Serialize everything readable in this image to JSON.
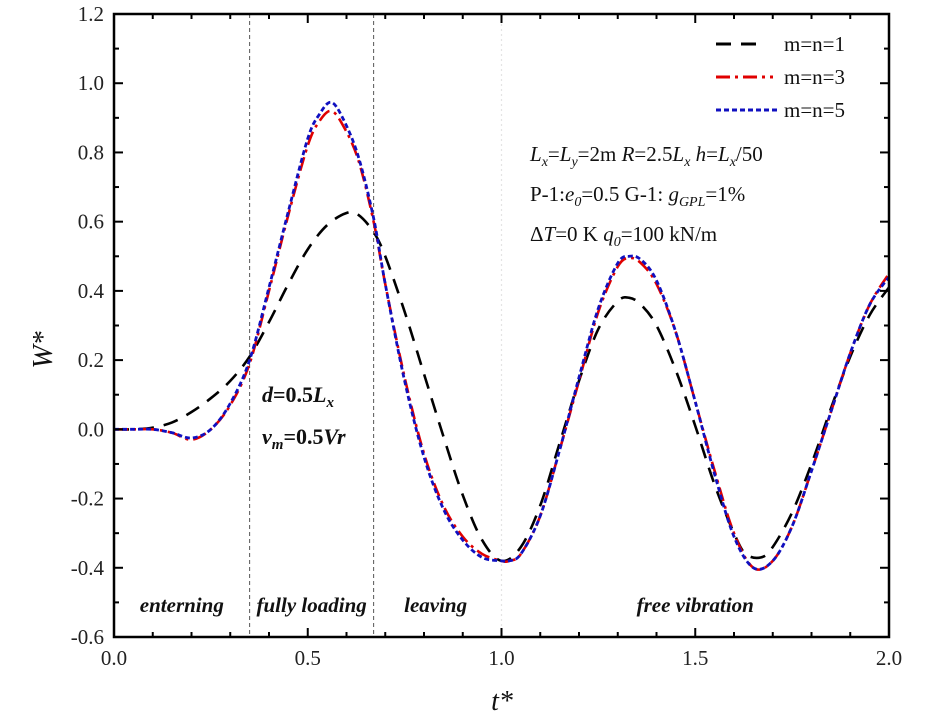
{
  "chart_data": {
    "type": "line",
    "title": "",
    "xlabel": "t*",
    "ylabel": "W*",
    "xlim": [
      0.0,
      2.0
    ],
    "ylim": [
      -0.6,
      1.2
    ],
    "xticks": [
      "0.0",
      "0.5",
      "1.0",
      "1.5",
      "2.0"
    ],
    "xtick_values": [
      0.0,
      0.5,
      1.0,
      1.5,
      2.0
    ],
    "yticks": [
      "-0.6",
      "-0.4",
      "-0.2",
      "0.0",
      "0.2",
      "0.4",
      "0.6",
      "0.8",
      "1.0",
      "1.2"
    ],
    "ytick_values": [
      -0.6,
      -0.4,
      -0.2,
      0.0,
      0.2,
      0.4,
      0.6,
      0.8,
      1.0,
      1.2
    ],
    "grid": false,
    "legend_position": "top-right",
    "vertical_markers": [
      {
        "x": 0.35,
        "style": "dashed"
      },
      {
        "x": 0.67,
        "style": "dashed"
      },
      {
        "x": 1.0,
        "style": "dotted-faint"
      }
    ],
    "region_labels": [
      {
        "text": "enterning",
        "x": 0.175
      },
      {
        "text": "fully loading",
        "x": 0.51
      },
      {
        "text": "leaving",
        "x": 0.83
      },
      {
        "text": "free vibration",
        "x": 1.5
      }
    ],
    "annotations": {
      "load": [
        "d=0.5Lx",
        "vm=0.5Vr"
      ],
      "params_line1": "Lx=Ly=2m   R=2.5Lx   h=Lx/50",
      "params_line2": "P-1:e0=0.5  G-1: gGPL=1%",
      "params_line3": "ΔT=0 K  q0=100 kN/m"
    },
    "series": [
      {
        "name": "m=n=1",
        "color": "#000000",
        "style": "dashed",
        "x": [
          0.0,
          0.05,
          0.1,
          0.15,
          0.2,
          0.25,
          0.3,
          0.35,
          0.4,
          0.45,
          0.5,
          0.55,
          0.6,
          0.63,
          0.67,
          0.7,
          0.75,
          0.8,
          0.85,
          0.9,
          0.95,
          1.0,
          1.05,
          1.1,
          1.15,
          1.2,
          1.25,
          1.3,
          1.33,
          1.36,
          1.4,
          1.45,
          1.5,
          1.55,
          1.6,
          1.63,
          1.67,
          1.7,
          1.75,
          1.8,
          1.85,
          1.9,
          1.95,
          2.0
        ],
        "y": [
          0.0,
          0.0,
          0.005,
          0.02,
          0.05,
          0.09,
          0.14,
          0.21,
          0.31,
          0.42,
          0.52,
          0.59,
          0.625,
          0.62,
          0.57,
          0.5,
          0.34,
          0.16,
          -0.02,
          -0.19,
          -0.32,
          -0.38,
          -0.34,
          -0.22,
          -0.04,
          0.14,
          0.29,
          0.37,
          0.38,
          0.36,
          0.3,
          0.17,
          0.01,
          -0.16,
          -0.3,
          -0.36,
          -0.37,
          -0.34,
          -0.24,
          -0.1,
          0.06,
          0.21,
          0.33,
          0.41
        ]
      },
      {
        "name": "m=n=3",
        "color": "#e00000",
        "style": "dash-dot",
        "x": [
          0.0,
          0.05,
          0.1,
          0.15,
          0.2,
          0.25,
          0.3,
          0.35,
          0.4,
          0.45,
          0.5,
          0.53,
          0.56,
          0.59,
          0.63,
          0.67,
          0.7,
          0.75,
          0.8,
          0.85,
          0.9,
          0.95,
          1.0,
          1.02,
          1.05,
          1.1,
          1.15,
          1.2,
          1.25,
          1.3,
          1.33,
          1.36,
          1.4,
          1.45,
          1.5,
          1.55,
          1.6,
          1.65,
          1.7,
          1.75,
          1.8,
          1.85,
          1.9,
          1.95,
          2.0
        ],
        "y": [
          0.0,
          0.0,
          0.0,
          -0.01,
          -0.03,
          0.0,
          0.07,
          0.19,
          0.4,
          0.62,
          0.82,
          0.89,
          0.92,
          0.88,
          0.78,
          0.6,
          0.42,
          0.15,
          -0.07,
          -0.22,
          -0.31,
          -0.36,
          -0.38,
          -0.38,
          -0.36,
          -0.25,
          -0.06,
          0.14,
          0.34,
          0.47,
          0.495,
          0.48,
          0.42,
          0.28,
          0.08,
          -0.12,
          -0.3,
          -0.4,
          -0.38,
          -0.28,
          -0.12,
          0.05,
          0.22,
          0.36,
          0.45
        ]
      },
      {
        "name": "m=n=5",
        "color": "#1010c0",
        "style": "dotted",
        "x": [
          0.0,
          0.05,
          0.1,
          0.15,
          0.2,
          0.25,
          0.3,
          0.35,
          0.4,
          0.45,
          0.5,
          0.53,
          0.56,
          0.59,
          0.63,
          0.67,
          0.7,
          0.75,
          0.8,
          0.85,
          0.9,
          0.95,
          1.0,
          1.02,
          1.05,
          1.1,
          1.15,
          1.2,
          1.25,
          1.3,
          1.33,
          1.36,
          1.4,
          1.45,
          1.5,
          1.55,
          1.6,
          1.65,
          1.7,
          1.75,
          1.8,
          1.85,
          1.9,
          1.95,
          2.0
        ],
        "y": [
          0.0,
          0.0,
          0.0,
          -0.01,
          -0.025,
          0.0,
          0.075,
          0.2,
          0.41,
          0.63,
          0.84,
          0.91,
          0.945,
          0.9,
          0.79,
          0.61,
          0.42,
          0.14,
          -0.08,
          -0.23,
          -0.32,
          -0.37,
          -0.38,
          -0.38,
          -0.36,
          -0.25,
          -0.06,
          0.15,
          0.35,
          0.48,
          0.5,
          0.49,
          0.43,
          0.28,
          0.08,
          -0.13,
          -0.31,
          -0.4,
          -0.38,
          -0.28,
          -0.12,
          0.05,
          0.22,
          0.36,
          0.44
        ]
      }
    ]
  }
}
